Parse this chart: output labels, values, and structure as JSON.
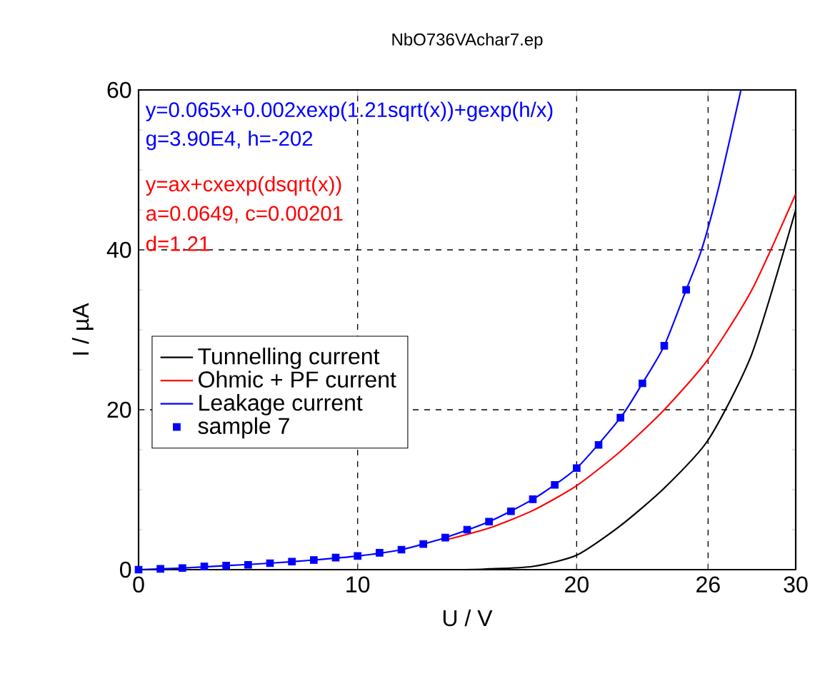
{
  "chart_data": {
    "type": "line",
    "title": "NbO736VAchar7.ep",
    "xlabel": "U / V",
    "ylabel": "I / µA",
    "xlim": [
      0,
      30
    ],
    "xticks": [
      0,
      10,
      20,
      26,
      30
    ],
    "ylim": [
      0,
      60
    ],
    "yticks": [
      0,
      20,
      40,
      60
    ],
    "grid": true,
    "legend": "left",
    "annotations": [
      "y=0.065x+0.002xexp(1.21sqrt(x))+gexp(h/x)",
      "g=3.90E4, h=-202",
      "y=ax+cxexp(dsqrt(x))",
      "a=0.0649, c=0.00201",
      "d=1.21"
    ],
    "series": [
      {
        "name": "Tunnelling current",
        "color": "#000000",
        "x": [
          0,
          14,
          16,
          18,
          20,
          22,
          24,
          26,
          28,
          30
        ],
        "values": [
          0,
          0,
          0.1,
          0.4,
          1.8,
          5.5,
          10.2,
          16.2,
          27,
          45
        ]
      },
      {
        "name": "Ohmic + PF current",
        "color": "#ff0000",
        "x": [
          14,
          16,
          18,
          20,
          22,
          24,
          26,
          28,
          30
        ],
        "values": [
          3.7,
          5.2,
          7.4,
          10.5,
          14.8,
          20,
          26.3,
          35,
          47
        ]
      },
      {
        "name": "Leakage current",
        "color": "#0000ff",
        "x": [
          0,
          2,
          4,
          6,
          8,
          10,
          12,
          14,
          16,
          18,
          20,
          22,
          23,
          24,
          25,
          25.7,
          26.5,
          27.5
        ],
        "values": [
          0,
          0.2,
          0.5,
          0.8,
          1.2,
          1.7,
          2.5,
          4.0,
          6.0,
          8.8,
          12.7,
          19,
          23.3,
          28,
          35,
          40,
          48,
          60
        ]
      },
      {
        "name": "sample 7",
        "type": "scatter",
        "marker": "square",
        "color": "#0000ff",
        "x": [
          0,
          1,
          2,
          3,
          4,
          5,
          6,
          7,
          8,
          9,
          10,
          11,
          12,
          13,
          14,
          15,
          16,
          17,
          18,
          19,
          20,
          21,
          22,
          23,
          24,
          25
        ],
        "values": [
          0,
          0.1,
          0.2,
          0.4,
          0.5,
          0.6,
          0.8,
          1.0,
          1.2,
          1.5,
          1.7,
          2.1,
          2.5,
          3.2,
          4.0,
          5.0,
          6.0,
          7.3,
          8.8,
          10.6,
          12.7,
          15.6,
          19,
          23.3,
          28,
          35
        ]
      }
    ]
  }
}
